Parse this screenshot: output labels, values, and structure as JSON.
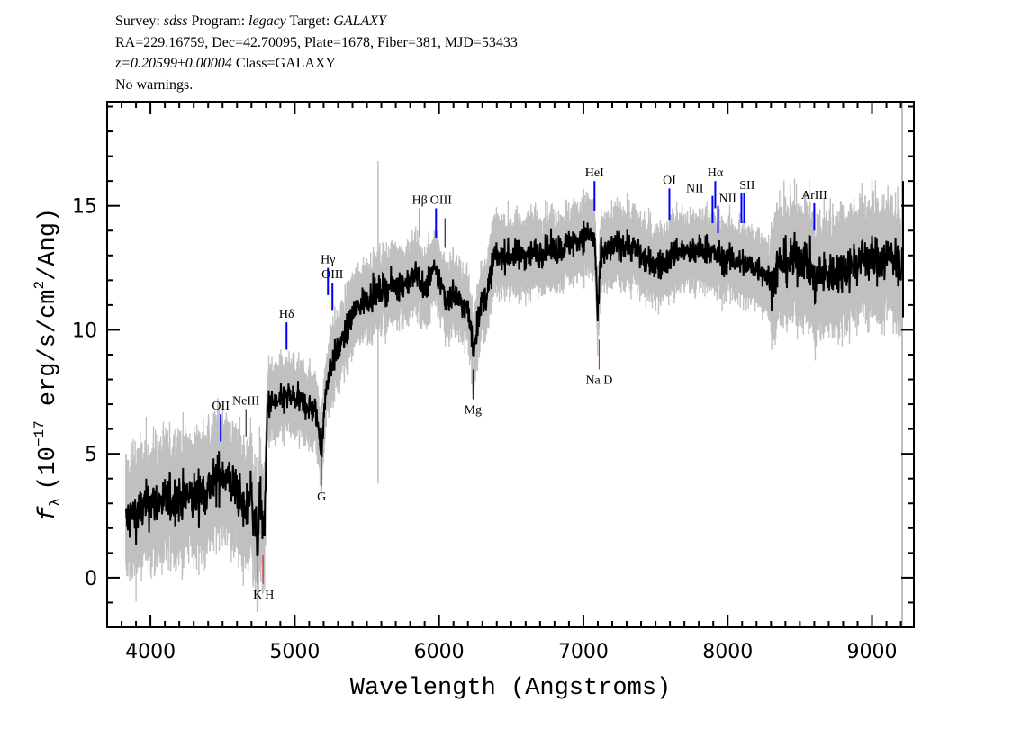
{
  "header": {
    "survey_label": "Survey:",
    "survey": "sdss",
    "program_label": "Program:",
    "program": "legacy",
    "target_label": "Target:",
    "target": "GALAXY",
    "coords": "RA=229.16759, Dec=42.70095, Plate=1678, Fiber=381, MJD=53433",
    "redshift": "z=0.20599±0.00004",
    "class": "Class=GALAXY",
    "warnings": "No warnings."
  },
  "chart_data": {
    "type": "line",
    "title": "",
    "xlabel": "Wavelength (Angstroms)",
    "ylabel": "fλ (10^-17 erg/s/cm^2/Ang)",
    "ylabel_parts": {
      "f": "f",
      "sub": "λ",
      "pre": "(10",
      "exp": "−17",
      "mid": " erg/s/cm",
      "exp2": "2",
      "post": "/Ang)"
    },
    "xlim": [
      3700,
      9290
    ],
    "ylim": [
      -2,
      19.2
    ],
    "xticks": [
      4000,
      5000,
      6000,
      7000,
      8000,
      9000
    ],
    "xtick_labels": [
      "4000",
      "5000",
      "6000",
      "7000",
      "8000",
      "9000"
    ],
    "yticks": [
      0,
      5,
      10,
      15
    ],
    "ytick_labels": [
      "0",
      "5",
      "10",
      "15"
    ],
    "grid": false,
    "colors": {
      "flux": "#000000",
      "error_band": "#c0c0c0",
      "emission": "#0000ff",
      "absorption": "#ff0000",
      "sky": "#c0c0c0"
    },
    "series": [
      {
        "role": "flux",
        "x": [
          3830,
          3900,
          4000,
          4100,
          4200,
          4300,
          4400,
          4450,
          4500,
          4550,
          4600,
          4650,
          4700,
          4740,
          4760,
          4790,
          4810,
          4830,
          4900,
          4950,
          5000,
          5100,
          5150,
          5185,
          5220,
          5250,
          5300,
          5350,
          5400,
          5450,
          5500,
          5600,
          5700,
          5800,
          5850,
          5900,
          5950,
          6000,
          6050,
          6100,
          6150,
          6200,
          6240,
          6280,
          6330,
          6380,
          6450,
          6550,
          6650,
          6750,
          6850,
          6950,
          7050,
          7080,
          7100,
          7120,
          7160,
          7250,
          7350,
          7450,
          7550,
          7600,
          7650,
          7750,
          7850,
          7900,
          7950,
          8050,
          8150,
          8250,
          8300,
          8350,
          8450,
          8550,
          8600,
          8650,
          8750,
          8850,
          8950,
          9050,
          9150,
          9210
        ],
        "y": [
          2.3,
          2.6,
          3.0,
          3.1,
          3.2,
          3.3,
          3.6,
          3.9,
          4.3,
          3.8,
          3.6,
          2.6,
          3.5,
          1.3,
          3.2,
          1.6,
          7.0,
          7.0,
          7.1,
          7.3,
          7.2,
          6.9,
          6.6,
          5.2,
          7.8,
          8.6,
          9.2,
          9.8,
          10.6,
          11.0,
          11.3,
          11.6,
          11.8,
          12.0,
          12.3,
          11.5,
          12.4,
          12.1,
          11.2,
          11.5,
          11.1,
          10.8,
          9.2,
          10.8,
          11.4,
          12.9,
          13.0,
          13.0,
          13.1,
          13.2,
          13.3,
          13.6,
          13.9,
          13.5,
          10.3,
          13.0,
          13.1,
          13.5,
          13.3,
          12.7,
          12.6,
          12.9,
          13.2,
          13.1,
          13.3,
          13.1,
          12.9,
          12.8,
          12.6,
          12.4,
          11.8,
          12.6,
          12.8,
          12.9,
          11.9,
          12.2,
          12.3,
          12.6,
          12.9,
          12.8,
          13.0,
          12.3
        ]
      }
    ],
    "lines": [
      {
        "label": "OII",
        "wavelength": 4487,
        "kind": "emission",
        "ymin": 5.5,
        "ymax": 6.6,
        "label_pos": "above"
      },
      {
        "label": "NeIII",
        "wavelength": 4662,
        "kind": "other",
        "ymin": 5.7,
        "ymax": 6.8,
        "label_pos": "above"
      },
      {
        "label": "K",
        "wavelength": 4743,
        "kind": "absorption",
        "ymin": -0.25,
        "ymax": 0.9,
        "label_pos": "below"
      },
      {
        "label": "H",
        "wavelength": 4780,
        "kind": "absorption",
        "ymin": -0.25,
        "ymax": 0.9,
        "label_pos": "below"
      },
      {
        "label": "Hδ",
        "wavelength": 4943,
        "kind": "emission",
        "ymin": 9.2,
        "ymax": 10.3,
        "label_pos": "above"
      },
      {
        "label": "G",
        "wavelength": 5186,
        "kind": "absorption",
        "ymin": 3.7,
        "ymax": 4.9,
        "label_pos": "below"
      },
      {
        "label": "Hγ",
        "wavelength": 5230,
        "kind": "emission",
        "ymin": 11.4,
        "ymax": 12.5,
        "label_pos": "above"
      },
      {
        "label": "OIII",
        "wavelength": 5261,
        "kind": "emission",
        "ymin": 10.8,
        "ymax": 11.9,
        "label_pos": "above"
      },
      {
        "label": "Hβ",
        "wavelength": 5866,
        "kind": "other",
        "ymin": 13.7,
        "ymax": 14.9,
        "label_pos": "above"
      },
      {
        "label": "OIII",
        "wavelength": 5979,
        "kind": "emission",
        "ymin": 13.7,
        "ymax": 14.9,
        "label_pos": "above"
      },
      {
        "label": "",
        "wavelength": 6041,
        "kind": "other",
        "ymin": 13.3,
        "ymax": 14.5,
        "label_pos": "above"
      },
      {
        "label": "Mg",
        "wavelength": 6235,
        "kind": "other",
        "ymin": 7.2,
        "ymax": 8.4,
        "label_pos": "below"
      },
      {
        "label": "HeI",
        "wavelength": 7077,
        "kind": "emission",
        "ymin": 14.8,
        "ymax": 16.0,
        "label_pos": "above"
      },
      {
        "label": "Na D",
        "wavelength": 7109,
        "kind": "absorption",
        "ymin": 8.4,
        "ymax": 9.6,
        "label_pos": "below"
      },
      {
        "label": "OI",
        "wavelength": 7596,
        "kind": "emission",
        "ymin": 14.4,
        "ymax": 15.7,
        "label_pos": "above"
      },
      {
        "label": "NII",
        "wavelength": 7895,
        "kind": "emission",
        "ymin": 14.3,
        "ymax": 15.4,
        "label_pos": "left"
      },
      {
        "label": "Hα",
        "wavelength": 7914,
        "kind": "emission",
        "ymin": 14.9,
        "ymax": 16.0,
        "label_pos": "above"
      },
      {
        "label": "NII",
        "wavelength": 7933,
        "kind": "emission",
        "ymin": 13.9,
        "ymax": 15.0,
        "label_pos": "right"
      },
      {
        "label": "SII",
        "wavelength": 8095,
        "kind": "emission",
        "ymin": 14.3,
        "ymax": 15.5,
        "label_pos": "above"
      },
      {
        "label": "",
        "wavelength": 8114,
        "kind": "emission",
        "ymin": 14.3,
        "ymax": 15.5,
        "label_pos": "above"
      },
      {
        "label": "ArIII",
        "wavelength": 8600,
        "kind": "emission",
        "ymin": 14.0,
        "ymax": 15.1,
        "label_pos": "above"
      }
    ]
  }
}
